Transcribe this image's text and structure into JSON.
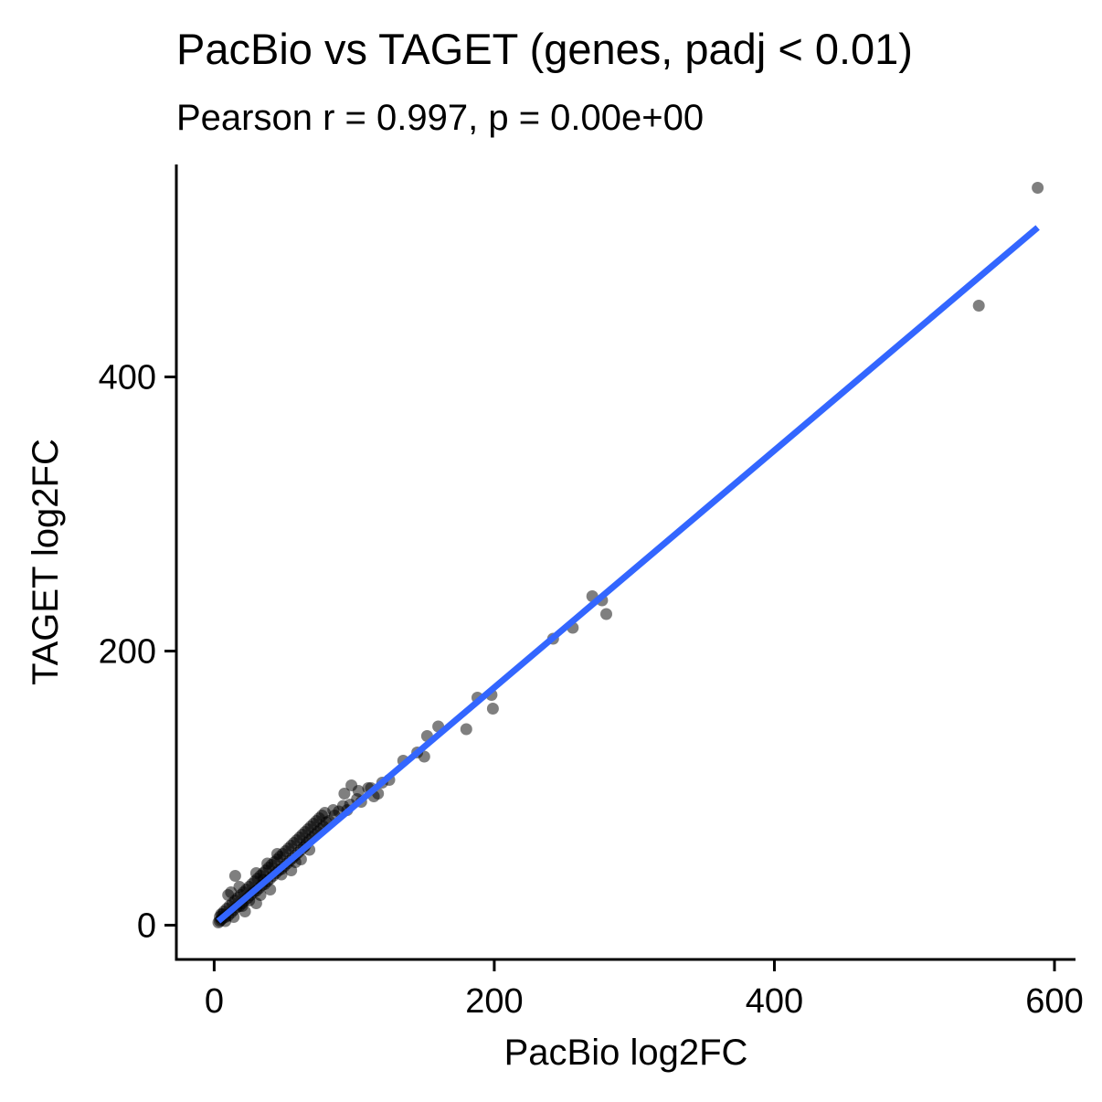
{
  "chart_data": {
    "type": "scatter",
    "title": "PacBio vs TAGET (genes, padj < 0.01)",
    "subtitle": "Pearson r = 0.997, p = 0.00e+00",
    "xlabel": "PacBio log2FC",
    "ylabel": "TAGET log2FC",
    "xlim": [
      -27,
      615
    ],
    "ylim": [
      -25,
      555
    ],
    "x_ticks": [
      0,
      200,
      400,
      600
    ],
    "y_ticks": [
      0,
      200,
      400
    ],
    "x_tick_labels": [
      "0",
      "200",
      "400",
      "600"
    ],
    "y_tick_labels": [
      "0",
      "200",
      "400"
    ],
    "grid": false,
    "legend": "none",
    "point_color": "#000000",
    "point_opacity": 0.5,
    "fit_line_color": "#3366FF",
    "fit_line": {
      "x": [
        3,
        588
      ],
      "y": [
        3,
        509
      ]
    },
    "points": {
      "x": [
        588,
        546,
        270,
        277,
        280,
        242,
        256,
        198,
        199,
        188,
        180,
        160,
        152,
        145,
        150,
        135,
        125,
        120,
        117,
        112,
        114,
        103,
        98,
        102,
        97,
        92,
        89,
        86,
        82,
        78,
        76,
        74,
        72,
        70,
        68,
        66,
        64,
        62,
        60,
        58,
        56,
        54,
        52,
        50,
        48,
        46,
        44,
        42,
        40,
        38,
        36,
        34,
        32,
        30,
        28,
        26,
        24,
        22,
        20,
        18,
        16,
        14,
        12,
        10,
        8,
        6,
        5,
        4,
        3,
        4,
        5,
        7,
        9,
        11,
        13,
        15,
        17,
        19,
        21,
        23,
        25,
        27,
        29,
        31,
        33,
        35,
        37,
        39,
        41,
        43,
        45,
        47,
        49,
        51,
        53,
        55,
        57,
        59,
        61,
        63,
        65,
        67,
        69,
        71,
        73,
        75,
        77,
        79,
        15,
        10,
        12,
        18,
        20,
        25,
        30,
        35,
        45,
        55,
        62,
        30,
        40,
        65,
        80,
        93,
        8,
        6,
        14,
        22,
        33,
        38,
        48,
        58,
        68,
        85,
        95,
        105,
        110
      ],
      "y": [
        538,
        452,
        240,
        237,
        227,
        209,
        217,
        168,
        158,
        166,
        143,
        145,
        138,
        126,
        123,
        120,
        106,
        104,
        96,
        100,
        94,
        98,
        102,
        92,
        88,
        87,
        83,
        80,
        76,
        72,
        70,
        68,
        66,
        64,
        62,
        60,
        57,
        55,
        53,
        51,
        49,
        47,
        45,
        43,
        41,
        40,
        38,
        36,
        34,
        32,
        30,
        29,
        27,
        25,
        24,
        22,
        20,
        18,
        16,
        14,
        13,
        11,
        9,
        7,
        6,
        5,
        4,
        3,
        2,
        6,
        8,
        10,
        12,
        14,
        16,
        18,
        20,
        22,
        24,
        26,
        28,
        30,
        32,
        34,
        36,
        38,
        40,
        42,
        44,
        46,
        48,
        50,
        52,
        54,
        56,
        58,
        60,
        62,
        64,
        66,
        68,
        70,
        72,
        74,
        76,
        78,
        80,
        82,
        36,
        22,
        24,
        28,
        14,
        18,
        38,
        33,
        52,
        40,
        48,
        16,
        26,
        58,
        75,
        96,
        3,
        8,
        6,
        10,
        22,
        45,
        37,
        46,
        55,
        84,
        84,
        90,
        100
      ]
    }
  }
}
